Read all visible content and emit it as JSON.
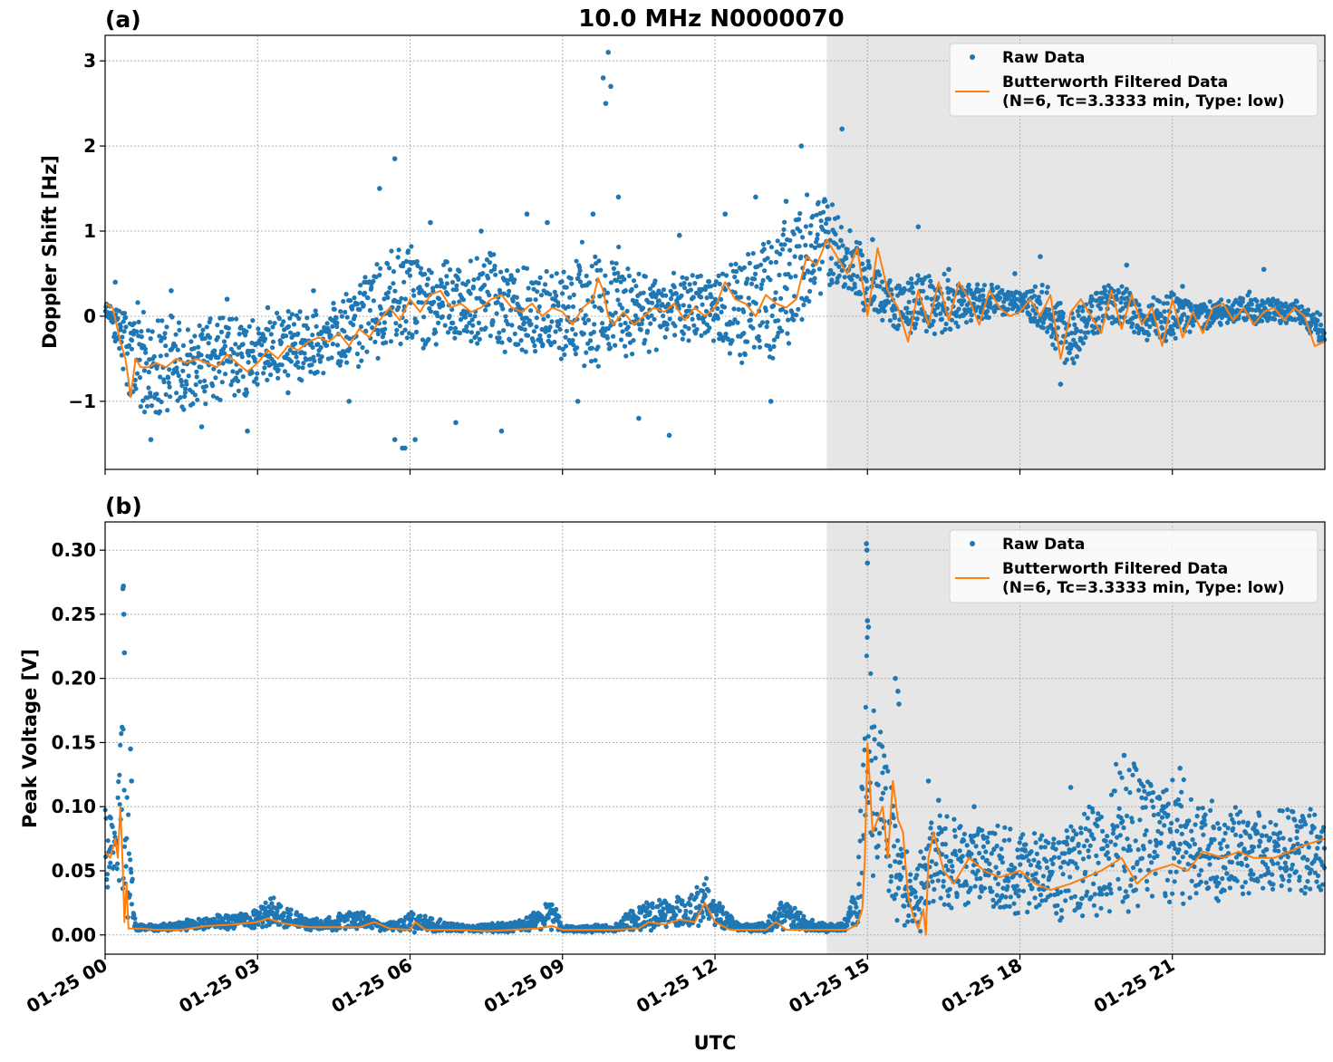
{
  "figure": {
    "title": "10.0 MHz N0000070",
    "xlabel": "UTC"
  },
  "colors": {
    "raw": "#1f77b4",
    "filtered": "#ff7f0e",
    "shade": "#e6e6e6",
    "grid": "#b0b0b0"
  },
  "chart_data": [
    {
      "type": "scatter",
      "panel_label": "(a)",
      "ylabel": "Doppler Shift [Hz]",
      "xlim_hours": [
        0,
        24
      ],
      "ylim": [
        -1.8,
        3.3
      ],
      "yticks": [
        -1,
        0,
        1,
        2,
        3
      ],
      "ytick_labels": [
        "−1",
        "0",
        "1",
        "2",
        "3"
      ],
      "shaded_region_hours": [
        14.2,
        24
      ],
      "legend": {
        "loc": "upper right",
        "entries": [
          "Raw Data",
          "Butterworth Filtered Data",
          "(N=6, Tc=3.3333 min, Type: low)"
        ]
      },
      "series": [
        {
          "name": "Raw Data",
          "kind": "scatter-band",
          "x_hours": [
            0,
            0.3,
            0.5,
            1,
            1.5,
            2,
            2.5,
            3,
            3.5,
            4,
            4.5,
            5,
            5.5,
            6,
            6.5,
            7,
            7.5,
            8,
            8.5,
            9,
            9.5,
            10,
            10.5,
            11,
            11.5,
            12,
            12.5,
            13,
            13.5,
            14,
            14.2,
            14.5,
            15,
            15.5,
            16,
            16.5,
            17,
            17.5,
            18,
            18.5,
            19,
            19.5,
            20,
            20.5,
            21,
            21.5,
            22,
            22.5,
            23,
            23.5,
            24
          ],
          "low": [
            0,
            -0.5,
            -1.2,
            -1.2,
            -1.1,
            -1.1,
            -1.0,
            -0.9,
            -0.8,
            -0.8,
            -0.7,
            -0.6,
            -0.5,
            -0.4,
            -0.4,
            -0.4,
            -0.4,
            -0.5,
            -0.5,
            -0.6,
            -0.7,
            -0.7,
            -0.5,
            -0.4,
            -0.3,
            -0.3,
            -0.6,
            -0.7,
            -0.3,
            0.2,
            0.2,
            0.3,
            0.0,
            -0.2,
            -0.3,
            -0.2,
            -0.1,
            0.0,
            0.0,
            -0.2,
            -0.7,
            -0.2,
            -0.1,
            -0.3,
            -0.3,
            -0.2,
            -0.1,
            -0.1,
            -0.1,
            -0.1,
            -0.4
          ],
          "high": [
            0.2,
            0.1,
            0.2,
            0.1,
            0.0,
            0.0,
            0.1,
            0.0,
            0.1,
            0.1,
            0.2,
            0.4,
            0.8,
            0.9,
            0.7,
            0.7,
            0.8,
            0.6,
            0.6,
            0.6,
            1.0,
            0.9,
            0.5,
            0.5,
            0.6,
            0.5,
            0.8,
            0.9,
            1.2,
            1.6,
            1.5,
            1.2,
            0.8,
            0.4,
            0.6,
            0.5,
            0.4,
            0.4,
            0.3,
            0.4,
            0.1,
            0.4,
            0.4,
            0.2,
            0.3,
            0.2,
            0.2,
            0.3,
            0.2,
            0.2,
            0.0
          ]
        },
        {
          "name": "Raw Data outliers",
          "kind": "points",
          "x_hours": [
            0.2,
            0.9,
            1.3,
            1.9,
            2.4,
            2.8,
            3.2,
            3.6,
            4.1,
            4.8,
            5.4,
            5.7,
            5.7,
            5.85,
            5.9,
            6.1,
            6.4,
            6.9,
            7.4,
            7.8,
            8.3,
            8.7,
            9.3,
            9.6,
            9.8,
            9.85,
            9.9,
            9.95,
            10.1,
            10.5,
            11.1,
            11.3,
            12.2,
            12.8,
            13.1,
            13.4,
            13.7,
            14.5,
            15.1,
            16.0,
            16.6,
            17.9,
            18.4,
            18.8,
            20.1,
            21.2,
            22.8
          ],
          "y": [
            0.4,
            -1.45,
            0.3,
            -1.3,
            0.2,
            -1.35,
            0.1,
            -0.9,
            0.3,
            -1.0,
            1.5,
            1.85,
            -1.45,
            -1.55,
            -1.55,
            -1.45,
            1.1,
            -1.25,
            1.0,
            -1.35,
            1.2,
            1.1,
            -1.0,
            1.2,
            2.8,
            2.5,
            3.1,
            2.7,
            1.4,
            -1.2,
            -1.4,
            0.95,
            1.2,
            1.4,
            -1.0,
            1.35,
            2.0,
            2.2,
            0.9,
            1.05,
            0.55,
            0.5,
            0.7,
            -0.8,
            0.6,
            0.35,
            0.55
          ]
        },
        {
          "name": "Butterworth Filtered Data",
          "kind": "line",
          "x_hours": [
            0,
            0.15,
            0.3,
            0.4,
            0.45,
            0.5,
            0.6,
            0.7,
            0.85,
            1,
            1.2,
            1.4,
            1.6,
            1.8,
            2.0,
            2.2,
            2.4,
            2.6,
            2.8,
            3.0,
            3.2,
            3.4,
            3.6,
            3.8,
            4.0,
            4.2,
            4.4,
            4.6,
            4.8,
            5.0,
            5.2,
            5.4,
            5.6,
            5.8,
            6.0,
            6.2,
            6.4,
            6.6,
            6.8,
            7.0,
            7.2,
            7.4,
            7.6,
            7.8,
            8.0,
            8.2,
            8.4,
            8.6,
            8.8,
            9.0,
            9.2,
            9.4,
            9.6,
            9.7,
            9.8,
            9.9,
            10.0,
            10.2,
            10.4,
            10.6,
            10.8,
            11.0,
            11.2,
            11.4,
            11.6,
            11.8,
            12.0,
            12.2,
            12.4,
            12.6,
            12.8,
            13.0,
            13.2,
            13.4,
            13.6,
            13.8,
            14.0,
            14.2,
            14.4,
            14.6,
            14.8,
            15.0,
            15.2,
            15.4,
            15.6,
            15.8,
            16.0,
            16.2,
            16.4,
            16.6,
            16.8,
            17.0,
            17.2,
            17.4,
            17.6,
            17.8,
            18.0,
            18.2,
            18.4,
            18.6,
            18.8,
            19.0,
            19.2,
            19.4,
            19.6,
            19.8,
            20.0,
            20.2,
            20.4,
            20.6,
            20.8,
            21.0,
            21.2,
            21.4,
            21.6,
            21.8,
            22.0,
            22.2,
            22.4,
            22.6,
            22.8,
            23.0,
            23.2,
            23.4,
            23.6,
            23.8,
            24.0
          ],
          "y": [
            0.15,
            0.1,
            -0.3,
            -0.5,
            -0.7,
            -0.95,
            -0.5,
            -0.6,
            -0.6,
            -0.55,
            -0.6,
            -0.5,
            -0.55,
            -0.5,
            -0.55,
            -0.6,
            -0.45,
            -0.55,
            -0.65,
            -0.55,
            -0.4,
            -0.5,
            -0.35,
            -0.4,
            -0.3,
            -0.25,
            -0.3,
            -0.2,
            -0.35,
            -0.15,
            -0.25,
            -0.05,
            0.1,
            -0.05,
            0.2,
            0.05,
            0.25,
            0.3,
            0.1,
            0.15,
            0.05,
            0.1,
            0.2,
            0.25,
            0.1,
            0.05,
            0.15,
            0.0,
            0.1,
            0.05,
            -0.1,
            0.1,
            0.2,
            0.45,
            0.3,
            0.0,
            -0.1,
            0.05,
            -0.1,
            0.0,
            0.1,
            0.05,
            0.15,
            -0.05,
            0.1,
            0.0,
            0.1,
            0.4,
            0.2,
            0.15,
            0.0,
            0.25,
            0.15,
            0.1,
            0.2,
            0.7,
            0.6,
            0.9,
            0.7,
            0.5,
            0.8,
            0.0,
            0.8,
            0.3,
            0.1,
            -0.3,
            0.3,
            -0.1,
            0.4,
            -0.05,
            0.4,
            0.2,
            -0.1,
            0.3,
            0.1,
            0.0,
            0.05,
            0.2,
            0.0,
            0.25,
            -0.5,
            0.05,
            0.2,
            0.0,
            -0.2,
            0.3,
            -0.15,
            0.25,
            -0.1,
            0.1,
            -0.35,
            0.2,
            -0.25,
            0.05,
            -0.2,
            0.1,
            0.15,
            -0.05,
            0.1,
            -0.1,
            0.05,
            0.1,
            -0.05,
            0.1,
            0.0,
            -0.35,
            -0.3
          ]
        }
      ]
    },
    {
      "type": "scatter",
      "panel_label": "(b)",
      "ylabel": "Peak Voltage [V]",
      "xlabel": "UTC",
      "xlim_hours": [
        0,
        24
      ],
      "ylim": [
        -0.015,
        0.322
      ],
      "yticks": [
        0.0,
        0.05,
        0.1,
        0.15,
        0.2,
        0.25,
        0.3
      ],
      "ytick_labels": [
        "0.00",
        "0.05",
        "0.10",
        "0.15",
        "0.20",
        "0.25",
        "0.30"
      ],
      "xticks_hours": [
        0,
        3,
        6,
        9,
        12,
        15,
        18,
        21
      ],
      "xtick_labels": [
        "01-25 00",
        "01-25 03",
        "01-25 06",
        "01-25 09",
        "01-25 12",
        "01-25 15",
        "01-25 18",
        "01-25 21"
      ],
      "shaded_region_hours": [
        14.2,
        24
      ],
      "legend": {
        "loc": "upper right",
        "entries": [
          "Raw Data",
          "Butterworth Filtered Data",
          "(N=6, Tc=3.3333 min, Type: low)"
        ]
      },
      "series": [
        {
          "name": "Raw Data",
          "kind": "scatter-band",
          "x_hours": [
            0,
            0.2,
            0.35,
            0.45,
            0.6,
            1,
            2,
            3,
            3.3,
            4,
            5,
            5.5,
            6,
            7,
            8,
            8.8,
            9,
            10,
            10.5,
            11,
            11.5,
            11.8,
            12,
            12.5,
            13,
            13.3,
            14,
            14.5,
            14.8,
            14.95,
            15.0,
            15.1,
            15.3,
            15.5,
            15.7,
            15.9,
            16.0,
            16.1,
            16.2,
            16.5,
            17,
            18,
            19,
            20,
            21,
            22,
            23,
            24
          ],
          "low": [
            0.03,
            0.04,
            0.03,
            0.005,
            0.003,
            0.003,
            0.004,
            0.005,
            0.006,
            0.003,
            0.004,
            0.003,
            0.002,
            0.002,
            0.002,
            0.003,
            0.002,
            0.002,
            0.003,
            0.004,
            0.005,
            0.008,
            0.006,
            0.003,
            0.002,
            0.003,
            0.002,
            0.002,
            0.003,
            0.02,
            0.05,
            0.03,
            0.04,
            0.01,
            0.005,
            0.01,
            0.0,
            0.0,
            0.02,
            0.02,
            0.02,
            0.015,
            0.01,
            0.015,
            0.02,
            0.025,
            0.03,
            0.03
          ],
          "high": [
            0.1,
            0.09,
            0.2,
            0.1,
            0.01,
            0.008,
            0.015,
            0.02,
            0.03,
            0.012,
            0.02,
            0.008,
            0.018,
            0.008,
            0.01,
            0.03,
            0.008,
            0.008,
            0.025,
            0.03,
            0.03,
            0.05,
            0.03,
            0.008,
            0.01,
            0.03,
            0.01,
            0.01,
            0.04,
            0.2,
            0.3,
            0.2,
            0.17,
            0.12,
            0.08,
            0.04,
            0.08,
            0.07,
            0.09,
            0.1,
            0.09,
            0.085,
            0.09,
            0.14,
            0.13,
            0.1,
            0.1,
            0.1
          ]
        },
        {
          "name": "Raw Data outliers",
          "kind": "points",
          "x_hours": [
            0.35,
            0.36,
            0.37,
            0.38,
            0.5,
            0.52,
            14.98,
            14.99,
            15.0,
            15.0,
            15.02,
            15.55,
            15.6,
            15.62,
            16.2,
            16.4,
            17.1,
            19.0,
            20.05,
            21.15
          ],
          "y": [
            0.27,
            0.272,
            0.25,
            0.22,
            0.145,
            0.12,
            0.305,
            0.3,
            0.29,
            0.245,
            0.24,
            0.2,
            0.19,
            0.18,
            0.12,
            0.105,
            0.1,
            0.115,
            0.14,
            0.13
          ]
        },
        {
          "name": "Butterworth Filtered Data",
          "kind": "line",
          "x_hours": [
            0,
            0.1,
            0.2,
            0.25,
            0.3,
            0.35,
            0.38,
            0.42,
            0.46,
            0.55,
            0.7,
            1,
            1.5,
            2,
            2.5,
            3,
            3.2,
            3.5,
            4,
            4.5,
            5,
            5.3,
            5.6,
            6,
            6.1,
            6.3,
            7,
            7.5,
            8,
            8.5,
            8.8,
            9,
            9.5,
            10,
            10.5,
            10.7,
            11,
            11.3,
            11.6,
            11.8,
            12,
            12.3,
            12.6,
            13,
            13.2,
            13.4,
            13.6,
            14,
            14.3,
            14.6,
            14.8,
            14.9,
            14.95,
            15.0,
            15.1,
            15.2,
            15.3,
            15.4,
            15.5,
            15.6,
            15.7,
            15.8,
            15.9,
            16.0,
            16.1,
            16.15,
            16.2,
            16.3,
            16.5,
            16.7,
            17,
            17.3,
            17.6,
            18,
            18.3,
            18.6,
            19,
            19.3,
            19.6,
            20,
            20.3,
            20.6,
            21,
            21.3,
            21.6,
            22,
            22.3,
            22.6,
            23,
            23.3,
            23.6,
            24
          ],
          "y": [
            0.065,
            0.06,
            0.075,
            0.06,
            0.1,
            0.05,
            0.01,
            0.04,
            0.005,
            0.005,
            0.005,
            0.004,
            0.004,
            0.007,
            0.008,
            0.01,
            0.013,
            0.009,
            0.006,
            0.006,
            0.006,
            0.01,
            0.005,
            0.004,
            0.01,
            0.004,
            0.004,
            0.003,
            0.004,
            0.005,
            0.007,
            0.004,
            0.004,
            0.004,
            0.005,
            0.01,
            0.008,
            0.012,
            0.01,
            0.025,
            0.01,
            0.004,
            0.004,
            0.004,
            0.01,
            0.004,
            0.004,
            0.004,
            0.004,
            0.004,
            0.008,
            0.02,
            0.06,
            0.15,
            0.08,
            0.09,
            0.1,
            0.06,
            0.12,
            0.09,
            0.08,
            0.03,
            0.015,
            0.005,
            0.02,
            0.0,
            0.06,
            0.08,
            0.05,
            0.04,
            0.06,
            0.05,
            0.045,
            0.05,
            0.04,
            0.035,
            0.04,
            0.045,
            0.05,
            0.06,
            0.04,
            0.05,
            0.055,
            0.05,
            0.065,
            0.06,
            0.065,
            0.06,
            0.06,
            0.065,
            0.07,
            0.075
          ]
        }
      ]
    }
  ]
}
